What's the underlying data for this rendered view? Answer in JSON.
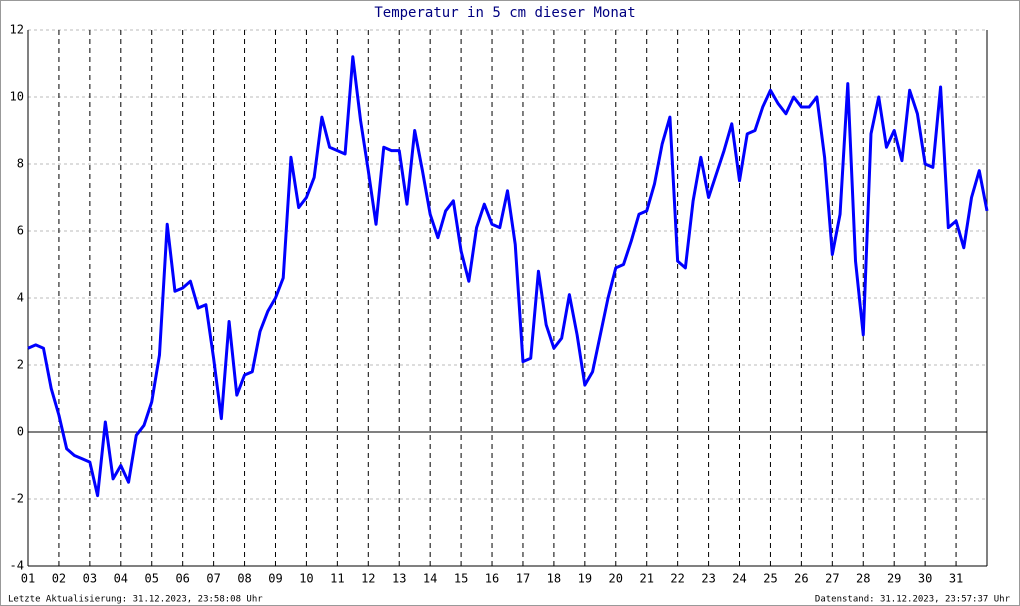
{
  "chart_data": {
    "type": "line",
    "title": "Temperatur in 5 cm dieser Monat",
    "footer_left": "Letzte Aktualisierung: 31.12.2023, 23:58:08 Uhr",
    "footer_right": "Datenstand: 31.12.2023, 23:57:37 Uhr",
    "xlim": [
      1,
      32
    ],
    "ylim": [
      -4,
      12
    ],
    "yticks": [
      -4,
      -2,
      0,
      2,
      4,
      6,
      8,
      10,
      12
    ],
    "xticks": [
      {
        "value": 1,
        "label": "01"
      },
      {
        "value": 2,
        "label": "02"
      },
      {
        "value": 3,
        "label": "03"
      },
      {
        "value": 4,
        "label": "04"
      },
      {
        "value": 5,
        "label": "05"
      },
      {
        "value": 6,
        "label": "06"
      },
      {
        "value": 7,
        "label": "07"
      },
      {
        "value": 8,
        "label": "08"
      },
      {
        "value": 9,
        "label": "09"
      },
      {
        "value": 10,
        "label": "10"
      },
      {
        "value": 11,
        "label": "11"
      },
      {
        "value": 12,
        "label": "12"
      },
      {
        "value": 13,
        "label": "13"
      },
      {
        "value": 14,
        "label": "14"
      },
      {
        "value": 15,
        "label": "15"
      },
      {
        "value": 16,
        "label": "16"
      },
      {
        "value": 17,
        "label": "17"
      },
      {
        "value": 18,
        "label": "18"
      },
      {
        "value": 19,
        "label": "19"
      },
      {
        "value": 20,
        "label": "20"
      },
      {
        "value": 21,
        "label": "21"
      },
      {
        "value": 22,
        "label": "22"
      },
      {
        "value": 23,
        "label": "23"
      },
      {
        "value": 24,
        "label": "24"
      },
      {
        "value": 25,
        "label": "25"
      },
      {
        "value": 26,
        "label": "26"
      },
      {
        "value": 27,
        "label": "27"
      },
      {
        "value": 28,
        "label": "28"
      },
      {
        "value": 29,
        "label": "29"
      },
      {
        "value": 30,
        "label": "30"
      },
      {
        "value": 31,
        "label": "31"
      }
    ],
    "grid": true,
    "x": [
      1,
      1.25,
      1.5,
      1.75,
      2,
      2.25,
      2.5,
      2.75,
      3,
      3.25,
      3.5,
      3.75,
      4,
      4.25,
      4.5,
      4.75,
      5,
      5.25,
      5.5,
      5.75,
      6,
      6.25,
      6.5,
      6.75,
      7,
      7.25,
      7.5,
      7.75,
      8,
      8.25,
      8.5,
      8.75,
      9,
      9.25,
      9.5,
      9.75,
      10,
      10.25,
      10.5,
      10.75,
      11,
      11.25,
      11.5,
      11.75,
      12,
      12.25,
      12.5,
      12.75,
      13,
      13.25,
      13.5,
      13.75,
      14,
      14.25,
      14.5,
      14.75,
      15,
      15.25,
      15.5,
      15.75,
      16,
      16.25,
      16.5,
      16.75,
      17,
      17.25,
      17.5,
      17.75,
      18,
      18.25,
      18.5,
      18.75,
      19,
      19.25,
      19.5,
      19.75,
      20,
      20.25,
      20.5,
      20.75,
      21,
      21.25,
      21.5,
      21.75,
      22,
      22.25,
      22.5,
      22.75,
      23,
      23.25,
      23.5,
      23.75,
      24,
      24.25,
      24.5,
      24.75,
      25,
      25.25,
      25.5,
      25.75,
      26,
      26.25,
      26.5,
      26.75,
      27,
      27.25,
      27.5,
      27.75,
      28,
      28.25,
      28.5,
      28.75,
      29,
      29.25,
      29.5,
      29.75,
      30,
      30.25,
      30.5,
      30.75,
      31,
      31.25,
      31.5,
      31.75,
      32
    ],
    "series": [
      {
        "color": "#0000ff",
        "values": [
          2.5,
          2.6,
          2.5,
          1.3,
          0.5,
          -0.5,
          -0.7,
          -0.8,
          -0.9,
          -1.9,
          0.3,
          -1.4,
          -1.0,
          -1.5,
          -0.1,
          0.2,
          0.9,
          2.3,
          6.2,
          4.2,
          4.3,
          4.5,
          3.7,
          3.8,
          2.2,
          0.4,
          3.3,
          1.1,
          1.7,
          1.8,
          3.0,
          3.6,
          4.0,
          4.6,
          8.2,
          6.7,
          7.0,
          7.6,
          9.4,
          8.5,
          8.4,
          8.3,
          11.2,
          9.3,
          7.8,
          6.2,
          8.5,
          8.4,
          8.4,
          6.8,
          9.0,
          7.8,
          6.5,
          5.8,
          6.6,
          6.9,
          5.4,
          4.5,
          6.1,
          6.8,
          6.2,
          6.1,
          7.2,
          5.6,
          2.1,
          2.2,
          4.8,
          3.2,
          2.5,
          2.8,
          4.1,
          2.9,
          1.4,
          1.8,
          2.9,
          4.0,
          4.9,
          5.0,
          5.7,
          6.5,
          6.6,
          7.4,
          8.6,
          9.4,
          5.1,
          4.9,
          6.9,
          8.2,
          7.0,
          7.7,
          8.4,
          9.2,
          7.5,
          8.9,
          9.0,
          9.7,
          10.2,
          9.8,
          9.5,
          10.0,
          9.7,
          9.7,
          10.0,
          8.2,
          5.3,
          6.5,
          10.4,
          5.1,
          2.9,
          8.9,
          10.0,
          8.5,
          9.0,
          8.1,
          10.2,
          9.5,
          8.0,
          7.9,
          10.3,
          6.1,
          6.3,
          5.5,
          7.0,
          7.8,
          6.6
        ]
      }
    ]
  }
}
